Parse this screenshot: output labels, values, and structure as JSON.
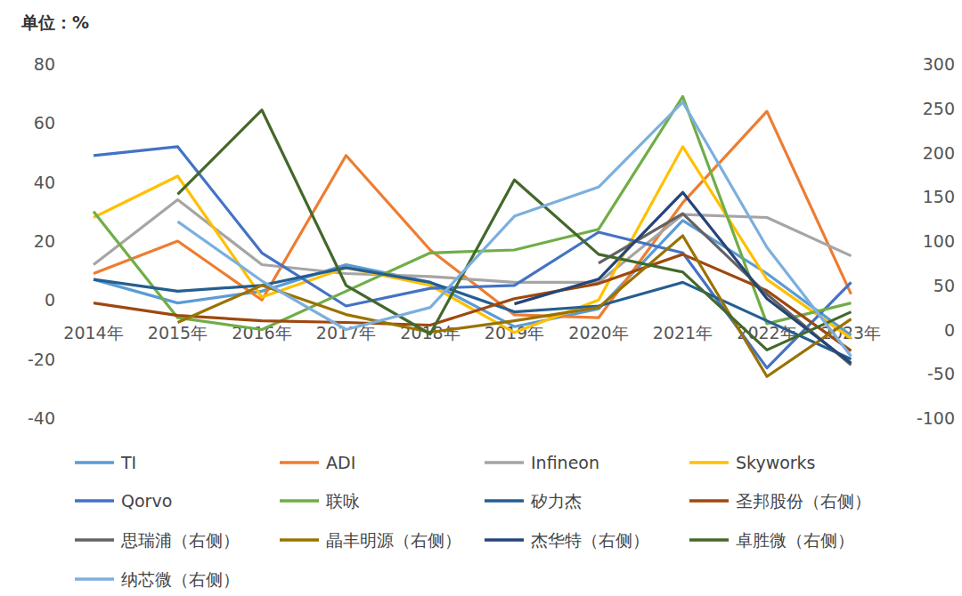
{
  "chart_data": {
    "type": "line",
    "y_label": "单位：%",
    "categories": [
      "2014年",
      "2015年",
      "2016年",
      "2017年",
      "2018年",
      "2019年",
      "2020年",
      "2021年",
      "2022年",
      "2023年"
    ],
    "ylim": [
      -40,
      80
    ],
    "yticks": [
      -40,
      -20,
      0,
      20,
      40,
      60,
      80
    ],
    "y2lim": [
      -100,
      300
    ],
    "y2ticks": [
      -100,
      -50,
      0,
      50,
      100,
      150,
      200,
      250,
      300
    ],
    "grid": false,
    "legend": "bottom",
    "series": [
      {
        "name": "TI",
        "color": "#5b9bd5",
        "values": [
          7,
          -1,
          3,
          12,
          6,
          -9,
          -3,
          27,
          9,
          -12
        ]
      },
      {
        "name": "ADI",
        "color": "#ed7d31",
        "values": [
          9,
          20,
          0,
          49,
          17,
          -5,
          -6,
          33,
          64,
          2
        ]
      },
      {
        "name": "Infineon",
        "color": "#a5a5a5",
        "values": [
          12,
          34,
          12,
          9,
          8,
          6,
          6,
          29,
          28,
          15
        ]
      },
      {
        "name": "Skyworks",
        "color": "#ffc000",
        "values": [
          28,
          42,
          1,
          11,
          5,
          -11,
          0,
          52,
          7,
          -13
        ]
      },
      {
        "name": "Qorvo",
        "color": "#4472c4",
        "values": [
          49,
          52,
          16,
          -2,
          4,
          5,
          23,
          16,
          -23,
          6
        ]
      },
      {
        "name": "联咏",
        "color": "#70ad47",
        "values": [
          30,
          -6,
          -10,
          3,
          16,
          17,
          24,
          69,
          -8,
          -1
        ]
      },
      {
        "name": "矽力杰",
        "color": "#255e91",
        "values": [
          7,
          3,
          5,
          11,
          6,
          -4,
          -2,
          6,
          -7,
          -20
        ]
      },
      {
        "name": "圣邦股份（右侧）",
        "color": "#9e480e",
        "axis": "y2",
        "values": [
          30,
          16,
          10,
          8,
          5,
          35,
          52,
          85,
          44,
          -24
        ]
      },
      {
        "name": "思瑞浦（右侧）",
        "color": "#636363",
        "axis": "y2",
        "values": [
          null,
          null,
          null,
          null,
          null,
          null,
          75,
          131,
          40,
          -40
        ]
      },
      {
        "name": "晶丰明源（右侧）",
        "color": "#997300",
        "axis": "y2",
        "values": [
          null,
          8,
          50,
          17,
          -3,
          10,
          25,
          106,
          -53,
          12
        ]
      },
      {
        "name": "杰华特（右侧）",
        "color": "#264478",
        "axis": "y2",
        "values": [
          null,
          null,
          null,
          null,
          null,
          29,
          57,
          155,
          35,
          -38
        ]
      },
      {
        "name": "卓胜微（右侧）",
        "color": "#43682b",
        "axis": "y2",
        "values": [
          null,
          153,
          248,
          50,
          -5,
          169,
          85,
          65,
          -23,
          20
        ]
      },
      {
        "name": "纳芯微（右侧）",
        "color": "#7cafdd",
        "axis": "y2",
        "values": [
          null,
          122,
          55,
          0,
          25,
          128,
          161,
          257,
          93,
          -30
        ]
      }
    ]
  }
}
